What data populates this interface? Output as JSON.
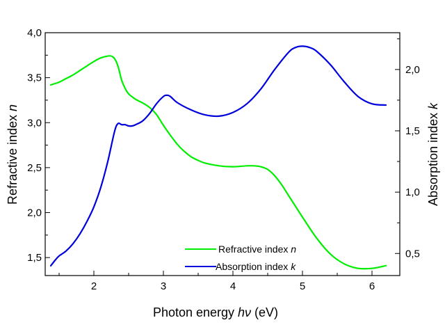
{
  "chart_data": {
    "type": "line",
    "xlabel": {
      "prefix": "Photon energy ",
      "var": "hν",
      "suffix": " (eV)"
    },
    "ylabel_left": {
      "prefix": "Refractive index ",
      "var": "n"
    },
    "ylabel_right": {
      "prefix": "Absorption index  ",
      "var": "k"
    },
    "xlim": [
      1.3,
      6.4
    ],
    "ylim_left": [
      1.3,
      4.0
    ],
    "ylim_right": [
      0.32,
      2.3
    ],
    "x_ticks": [
      {
        "value": 2,
        "label": "2"
      },
      {
        "value": 3,
        "label": "3"
      },
      {
        "value": 4,
        "label": "4"
      },
      {
        "value": 5,
        "label": "5"
      },
      {
        "value": 6,
        "label": "6"
      }
    ],
    "y_left_ticks": [
      {
        "value": 1.5,
        "label": "1,5"
      },
      {
        "value": 2.0,
        "label": "2,0"
      },
      {
        "value": 2.5,
        "label": "2,5"
      },
      {
        "value": 3.0,
        "label": "3,0"
      },
      {
        "value": 3.5,
        "label": "3,5"
      },
      {
        "value": 4.0,
        "label": "4,0"
      }
    ],
    "y_right_ticks": [
      {
        "value": 0.5,
        "label": "0,5"
      },
      {
        "value": 1.0,
        "label": "1,0"
      },
      {
        "value": 1.5,
        "label": "1,5"
      },
      {
        "value": 2.0,
        "label": "2,0"
      }
    ],
    "grid": false,
    "legend_position": "bottom-center",
    "series": [
      {
        "name": {
          "prefix": "Refractive index ",
          "var": "n"
        },
        "axis": "left",
        "color": "#00ee00",
        "x": [
          1.38,
          1.5,
          1.6,
          1.7,
          1.8,
          1.9,
          2.0,
          2.1,
          2.2,
          2.25,
          2.3,
          2.35,
          2.4,
          2.45,
          2.5,
          2.6,
          2.7,
          2.8,
          2.9,
          3.0,
          3.1,
          3.2,
          3.3,
          3.4,
          3.5,
          3.6,
          3.8,
          4.0,
          4.2,
          4.3,
          4.4,
          4.5,
          4.6,
          4.7,
          4.8,
          4.9,
          5.0,
          5.2,
          5.4,
          5.6,
          5.8,
          6.0,
          6.2
        ],
        "y": [
          3.42,
          3.45,
          3.49,
          3.53,
          3.58,
          3.63,
          3.68,
          3.72,
          3.74,
          3.74,
          3.71,
          3.62,
          3.47,
          3.38,
          3.32,
          3.26,
          3.22,
          3.17,
          3.09,
          2.97,
          2.86,
          2.76,
          2.68,
          2.62,
          2.58,
          2.55,
          2.52,
          2.51,
          2.52,
          2.52,
          2.51,
          2.48,
          2.41,
          2.31,
          2.19,
          2.07,
          1.95,
          1.72,
          1.54,
          1.43,
          1.38,
          1.38,
          1.41
        ]
      },
      {
        "name": {
          "prefix": "Absorption index ",
          "var": "k"
        },
        "axis": "right",
        "color": "#0000dd",
        "x": [
          1.38,
          1.45,
          1.5,
          1.6,
          1.7,
          1.8,
          1.9,
          2.0,
          2.1,
          2.2,
          2.3,
          2.35,
          2.4,
          2.45,
          2.5,
          2.55,
          2.6,
          2.7,
          2.8,
          2.9,
          3.0,
          3.05,
          3.1,
          3.2,
          3.4,
          3.6,
          3.8,
          4.0,
          4.2,
          4.4,
          4.6,
          4.8,
          4.9,
          5.0,
          5.1,
          5.2,
          5.4,
          5.6,
          5.8,
          6.0,
          6.2
        ],
        "y": [
          0.4,
          0.45,
          0.48,
          0.52,
          0.58,
          0.66,
          0.76,
          0.88,
          1.04,
          1.25,
          1.5,
          1.56,
          1.55,
          1.55,
          1.54,
          1.54,
          1.55,
          1.58,
          1.64,
          1.72,
          1.78,
          1.79,
          1.78,
          1.73,
          1.67,
          1.63,
          1.62,
          1.65,
          1.72,
          1.84,
          2.0,
          2.14,
          2.18,
          2.19,
          2.18,
          2.15,
          2.04,
          1.9,
          1.78,
          1.72,
          1.71
        ]
      }
    ]
  }
}
